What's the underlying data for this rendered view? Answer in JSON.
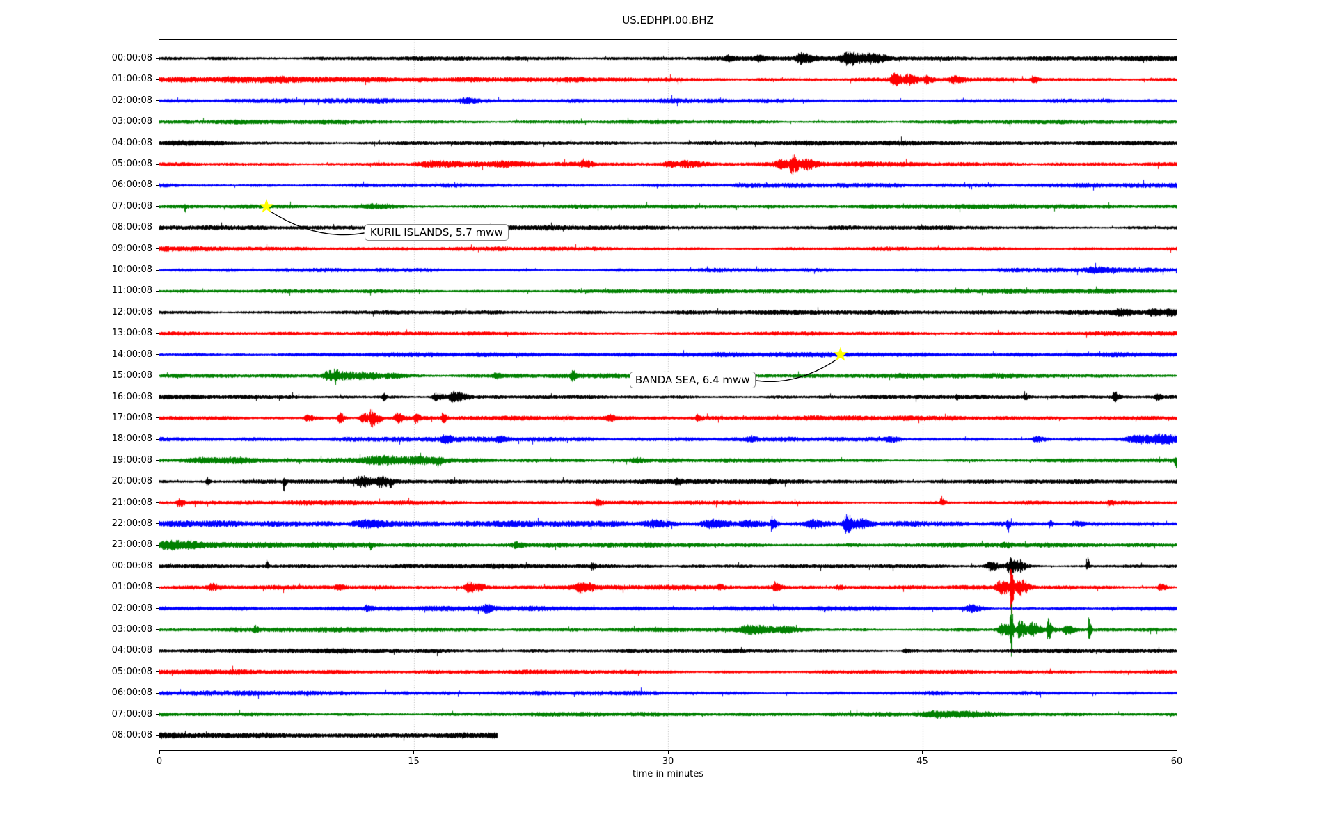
{
  "chart_data": {
    "type": "line",
    "subtype": "seismic-helicorder-dayplot",
    "title": "US.EDHPI.00.BHZ",
    "xlabel": "time in minutes",
    "x_ticks": [
      "0",
      "15",
      "30",
      "45",
      "60"
    ],
    "x_range_minutes": [
      0,
      60
    ],
    "grid_minutes": [
      15,
      30,
      45
    ],
    "grid_style": "dotted",
    "grid_color": "#b0b0b0",
    "legend": "none",
    "trace_color_cycle": [
      "#000000",
      "#ff0000",
      "#0000ff",
      "#008000"
    ],
    "star_color": "#ffff00",
    "event_note": "events are [minute, amplitude_px, width_minutes, direction(-1 down,1 up,0 sym)]",
    "rows": [
      {
        "label": "00:00:08",
        "color": "#000000",
        "noise": 1.05,
        "end_minute": 60,
        "events": [
          [
            33.5,
            3,
            0.3
          ],
          [
            35.3,
            3,
            0.3
          ],
          [
            37.8,
            6,
            0.5
          ],
          [
            40.6,
            7,
            0.8
          ],
          [
            41.8,
            6,
            0.6
          ],
          [
            42.4,
            5,
            0.4
          ]
        ]
      },
      {
        "label": "01:00:08",
        "color": "#ff0000",
        "noise": 1.1,
        "end_minute": 60,
        "events": [
          [
            7,
            1.5,
            8
          ],
          [
            15.3,
            5,
            0.08,
            -1
          ],
          [
            43.3,
            8,
            0.35
          ],
          [
            44.1,
            6,
            0.5
          ],
          [
            45.2,
            5,
            0.3
          ],
          [
            46.8,
            4,
            0.4
          ],
          [
            51.5,
            4,
            0.25
          ]
        ]
      },
      {
        "label": "02:00:08",
        "color": "#0000ff",
        "noise": 1.0,
        "end_minute": 60,
        "events": [
          [
            18,
            2.5,
            0.5
          ]
        ]
      },
      {
        "label": "03:00:08",
        "color": "#008000",
        "noise": 0.95,
        "end_minute": 60,
        "events": []
      },
      {
        "label": "04:00:08",
        "color": "#000000",
        "noise": 1.05,
        "end_minute": 60,
        "events": [
          [
            1.5,
            1.5,
            2.5
          ]
        ]
      },
      {
        "label": "05:00:08",
        "color": "#ff0000",
        "noise": 1.0,
        "end_minute": 60,
        "events": [
          [
            16,
            3,
            1.5
          ],
          [
            20,
            3,
            1
          ],
          [
            25,
            4,
            0.4
          ],
          [
            30,
            3,
            0.5
          ],
          [
            31,
            4,
            0.8
          ],
          [
            36.6,
            5,
            0.5
          ],
          [
            37.3,
            13,
            0.3,
            0
          ],
          [
            38,
            6,
            0.5
          ]
        ]
      },
      {
        "label": "06:00:08",
        "color": "#0000ff",
        "noise": 1.0,
        "end_minute": 60,
        "events": []
      },
      {
        "label": "07:00:08",
        "color": "#008000",
        "noise": 1.0,
        "end_minute": 60,
        "events": [
          [
            1.5,
            8,
            0.06,
            -1
          ],
          [
            12.5,
            2.5,
            1.5
          ]
        ]
      },
      {
        "label": "08:00:08",
        "color": "#000000",
        "noise": 1.0,
        "end_minute": 60,
        "events": []
      },
      {
        "label": "09:00:08",
        "color": "#ff0000",
        "noise": 1.0,
        "end_minute": 60,
        "events": []
      },
      {
        "label": "10:00:08",
        "color": "#0000ff",
        "noise": 1.0,
        "end_minute": 60,
        "events": [
          [
            55,
            2.5,
            0.8
          ]
        ]
      },
      {
        "label": "11:00:08",
        "color": "#008000",
        "noise": 0.95,
        "end_minute": 60,
        "events": []
      },
      {
        "label": "12:00:08",
        "color": "#000000",
        "noise": 1.0,
        "end_minute": 60,
        "events": [
          [
            56.5,
            3,
            0.6
          ],
          [
            58.5,
            3.5,
            0.5
          ],
          [
            59.5,
            3,
            0.3
          ]
        ]
      },
      {
        "label": "13:00:08",
        "color": "#ff0000",
        "noise": 1.0,
        "end_minute": 60,
        "events": []
      },
      {
        "label": "14:00:08",
        "color": "#0000ff",
        "noise": 1.0,
        "end_minute": 60,
        "events": []
      },
      {
        "label": "15:00:08",
        "color": "#008000",
        "noise": 1.0,
        "end_minute": 60,
        "events": [
          [
            9.9,
            6,
            0.5
          ],
          [
            10.35,
            11,
            0.22,
            0
          ],
          [
            10.9,
            6,
            0.6
          ],
          [
            11.8,
            5,
            0.5
          ],
          [
            12.5,
            4,
            0.5
          ],
          [
            13.5,
            3,
            0.8
          ],
          [
            19.8,
            3,
            0.3
          ],
          [
            24.3,
            6,
            0.18
          ],
          [
            29.7,
            3,
            0.4
          ]
        ]
      },
      {
        "label": "16:00:08",
        "color": "#000000",
        "noise": 1.0,
        "end_minute": 60,
        "events": [
          [
            13.2,
            4,
            0.15
          ],
          [
            16.3,
            5,
            0.4
          ],
          [
            17.3,
            7,
            0.5,
            0
          ],
          [
            17.8,
            5,
            0.3
          ],
          [
            47,
            3,
            0.1
          ],
          [
            51,
            4,
            0.15
          ],
          [
            56.3,
            6,
            0.2
          ],
          [
            58.8,
            4,
            0.2
          ]
        ]
      },
      {
        "label": "17:00:08",
        "color": "#ff0000",
        "noise": 1.0,
        "end_minute": 60,
        "events": [
          [
            8.7,
            4,
            0.3
          ],
          [
            10.6,
            8,
            0.2
          ],
          [
            12.0,
            6,
            0.4
          ],
          [
            12.5,
            14,
            0.25,
            0
          ],
          [
            12.8,
            10,
            0.2,
            -1
          ],
          [
            14.0,
            7,
            0.3
          ],
          [
            15.1,
            5,
            0.2
          ],
          [
            16.7,
            7,
            0.15
          ],
          [
            26.5,
            3,
            0.3
          ],
          [
            31.7,
            4,
            0.2
          ]
        ]
      },
      {
        "label": "18:00:08",
        "color": "#0000ff",
        "noise": 1.05,
        "end_minute": 60,
        "events": [
          [
            16.8,
            4,
            0.3
          ],
          [
            20,
            3,
            0.3
          ],
          [
            34.8,
            3,
            0.3
          ],
          [
            43,
            3,
            0.4
          ],
          [
            51.7,
            4,
            0.4
          ],
          [
            57.6,
            5,
            1
          ],
          [
            58.8,
            6,
            0.5
          ],
          [
            59.3,
            5,
            0.6
          ]
        ]
      },
      {
        "label": "19:00:08",
        "color": "#008000",
        "noise": 1.0,
        "end_minute": 60,
        "events": [
          [
            2.5,
            3,
            1.8
          ],
          [
            4,
            3,
            1.2
          ],
          [
            13,
            4,
            2
          ],
          [
            15,
            4,
            1
          ],
          [
            16.4,
            6,
            0.3,
            -1
          ],
          [
            28,
            2.5,
            0.5
          ],
          [
            59.9,
            13,
            0.12,
            -1
          ]
        ]
      },
      {
        "label": "20:00:08",
        "color": "#000000",
        "noise": 1.0,
        "end_minute": 60,
        "events": [
          [
            2.8,
            5,
            0.12
          ],
          [
            7.3,
            12,
            0.1,
            -1
          ],
          [
            11.9,
            5,
            0.6
          ],
          [
            13,
            6,
            0.5
          ],
          [
            13.6,
            8,
            0.15,
            -1
          ],
          [
            30.5,
            3,
            0.2
          ],
          [
            36,
            2.5,
            0.2
          ]
        ]
      },
      {
        "label": "21:00:08",
        "color": "#ff0000",
        "noise": 1.0,
        "end_minute": 60,
        "events": [
          [
            1.1,
            5,
            0.25
          ],
          [
            25.8,
            3,
            0.3
          ],
          [
            46.1,
            8,
            0.15,
            1
          ],
          [
            56,
            3,
            0.2
          ]
        ]
      },
      {
        "label": "22:00:08",
        "color": "#0000ff",
        "noise": 1.3,
        "end_minute": 60,
        "events": [
          [
            12,
            4,
            1.2
          ],
          [
            29,
            3.5,
            0.8
          ],
          [
            32.5,
            4.5,
            1
          ],
          [
            34.5,
            4,
            0.8
          ],
          [
            36.1,
            9,
            0.2,
            0
          ],
          [
            38.4,
            4,
            0.6
          ],
          [
            40.5,
            11,
            0.35,
            0
          ],
          [
            41.2,
            5,
            0.5
          ],
          [
            50,
            12,
            0.1,
            -1
          ],
          [
            52.5,
            4,
            0.12
          ],
          [
            54,
            3,
            0.6
          ]
        ]
      },
      {
        "label": "23:00:08",
        "color": "#008000",
        "noise": 1.15,
        "end_minute": 60,
        "events": [
          [
            0.5,
            5,
            1
          ],
          [
            1.5,
            4,
            0.8
          ],
          [
            12.4,
            5,
            0.12,
            -1
          ],
          [
            21,
            3,
            0.4
          ],
          [
            49.8,
            3,
            0.3
          ]
        ]
      },
      {
        "label": "00:00:08",
        "color": "#000000",
        "noise": 1.0,
        "end_minute": 60,
        "events": [
          [
            6.3,
            7,
            0.1,
            1
          ],
          [
            25.5,
            4,
            0.12
          ],
          [
            49,
            5,
            0.6
          ],
          [
            50.2,
            11,
            0.5
          ],
          [
            50.7,
            8,
            0.3
          ],
          [
            54.7,
            14,
            0.1,
            1
          ]
        ]
      },
      {
        "label": "01:00:08",
        "color": "#ff0000",
        "noise": 1.0,
        "end_minute": 60,
        "events": [
          [
            3,
            4,
            0.4
          ],
          [
            10.5,
            3,
            0.3
          ],
          [
            18.2,
            6,
            0.4
          ],
          [
            18.8,
            4,
            0.3
          ],
          [
            24.8,
            6,
            0.5
          ],
          [
            25.3,
            4,
            0.3
          ],
          [
            33,
            3,
            0.2
          ],
          [
            36.3,
            4,
            0.3
          ],
          [
            40,
            3,
            0.3
          ],
          [
            49.6,
            8,
            0.5
          ],
          [
            50.2,
            48,
            0.1,
            0
          ],
          [
            50.7,
            10,
            0.4
          ],
          [
            59,
            4,
            0.3
          ]
        ]
      },
      {
        "label": "02:00:08",
        "color": "#0000ff",
        "noise": 1.0,
        "end_minute": 60,
        "events": [
          [
            12.2,
            3,
            0.3
          ],
          [
            19.2,
            5,
            0.3
          ],
          [
            47.8,
            4,
            0.6
          ]
        ]
      },
      {
        "label": "03:00:08",
        "color": "#008000",
        "noise": 1.0,
        "end_minute": 60,
        "events": [
          [
            5.6,
            4,
            0.15
          ],
          [
            34.8,
            5,
            1.2
          ],
          [
            36.8,
            4,
            0.8
          ],
          [
            49.7,
            8,
            0.5
          ],
          [
            50.2,
            40,
            0.1,
            0
          ],
          [
            50.7,
            12,
            0.3
          ],
          [
            51.4,
            9,
            0.4
          ],
          [
            52.4,
            14,
            0.15
          ],
          [
            53.5,
            5,
            0.3
          ],
          [
            54.8,
            16,
            0.1,
            0
          ]
        ]
      },
      {
        "label": "04:00:08",
        "color": "#000000",
        "noise": 1.05,
        "end_minute": 60,
        "events": [
          [
            44,
            2.5,
            0.4
          ]
        ]
      },
      {
        "label": "05:00:08",
        "color": "#ff0000",
        "noise": 1.0,
        "end_minute": 60,
        "events": []
      },
      {
        "label": "06:00:08",
        "color": "#0000ff",
        "noise": 1.0,
        "end_minute": 60,
        "events": []
      },
      {
        "label": "07:00:08",
        "color": "#008000",
        "noise": 0.95,
        "end_minute": 60,
        "events": [
          [
            46,
            2.5,
            2
          ]
        ]
      },
      {
        "label": "08:00:08",
        "color": "#000000",
        "noise": 1.25,
        "end_minute": 19.9,
        "events": []
      }
    ],
    "annotations": [
      {
        "text": "KURIL ISLANDS, 5.7 mww",
        "row_index": 7,
        "event_minute": 6.32,
        "label_minute": 12.1,
        "label_row": 8.21,
        "connect_side": "left"
      },
      {
        "text": "BANDA SEA, 6.4 mww",
        "row_index": 14,
        "event_minute": 40.17,
        "label_minute": 27.74,
        "label_row": 15.21,
        "connect_side": "right"
      }
    ]
  }
}
